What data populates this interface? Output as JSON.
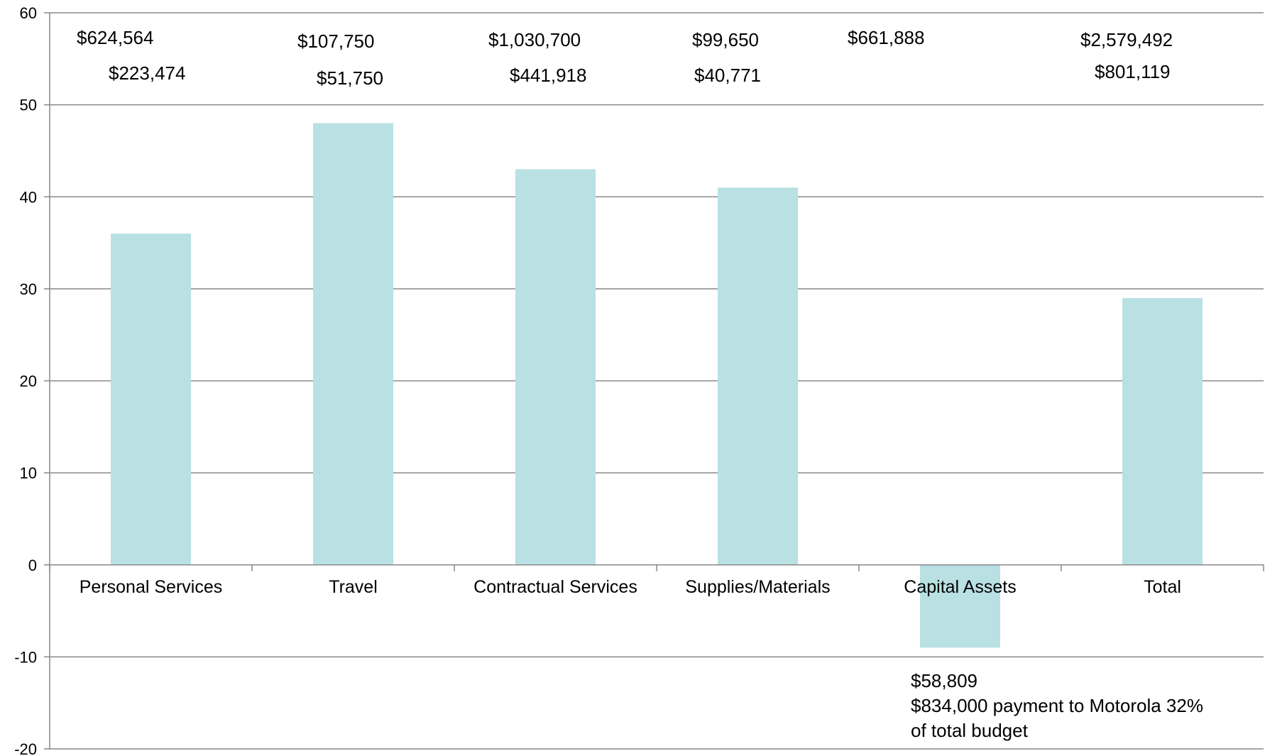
{
  "chart_data": {
    "type": "bar",
    "categories": [
      "Personal Services",
      "Travel",
      "Contractual Services",
      "Supplies/Materials",
      "Capital Assets",
      "Total"
    ],
    "values": [
      36,
      48,
      43,
      41,
      -9,
      29
    ],
    "ylim": [
      -20,
      60
    ],
    "yticks": [
      60,
      50,
      40,
      30,
      20,
      10,
      0,
      -10,
      -20
    ],
    "grid": true,
    "bar_color": "#b9e0e3",
    "grid_color": "#888888",
    "annotations": [
      {
        "category": "Personal Services",
        "lines": [
          "$624,564",
          "$223,474"
        ]
      },
      {
        "category": "Travel",
        "lines": [
          "$107,750",
          "$51,750"
        ]
      },
      {
        "category": "Contractual Services",
        "lines": [
          "$1,030,700",
          "$441,918"
        ]
      },
      {
        "category": "Supplies/Materials",
        "lines": [
          "$99,650",
          "$40,771"
        ]
      },
      {
        "category": "Capital Assets",
        "lines": [
          "$661,888"
        ]
      },
      {
        "category": "Total",
        "lines": [
          "$2,579,492",
          "$801,119"
        ]
      },
      {
        "category": "Capital Assets",
        "lines": [
          "$58,809",
          "$834,000 payment to Motorola 32%",
          "of total budget"
        ]
      }
    ]
  }
}
